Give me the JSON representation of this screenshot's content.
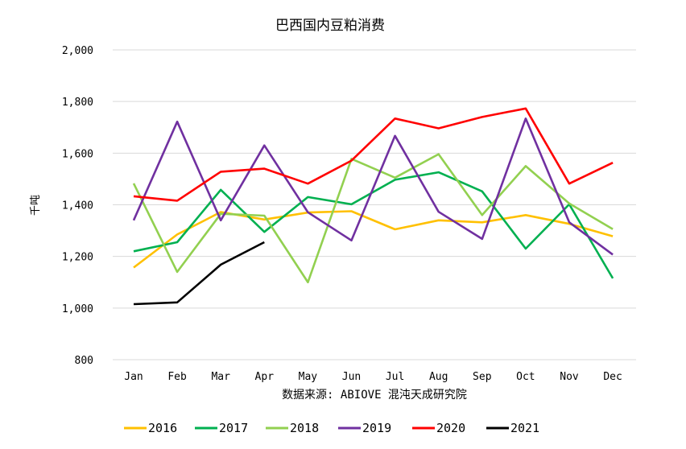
{
  "chart_data": {
    "type": "line",
    "title": "巴西国内豆粕消费",
    "xlabel": "",
    "ylabel": "千吨",
    "source": "数据来源: ABIOVE 混沌天成研究院",
    "ylim": [
      800,
      2000
    ],
    "y_ticks": [
      800,
      1000,
      1200,
      1400,
      1600,
      1800,
      2000
    ],
    "y_tick_labels": [
      "800",
      "1,000",
      "1,200",
      "1,400",
      "1,600",
      "1,800",
      "2,000"
    ],
    "grid": true,
    "legend_position": "bottom",
    "categories": [
      "Jan",
      "Feb",
      "Mar",
      "Apr",
      "May",
      "Jun",
      "Jul",
      "Aug",
      "Sep",
      "Oct",
      "Nov",
      "Dec"
    ],
    "series": [
      {
        "name": "2016",
        "color": "#FFC000",
        "values": [
          1157,
          1285,
          1372,
          1343,
          1370,
          1375,
          1305,
          1340,
          1332,
          1360,
          1326,
          1278
        ]
      },
      {
        "name": "2017",
        "color": "#00B050",
        "values": [
          1220,
          1255,
          1458,
          1295,
          1430,
          1402,
          1497,
          1526,
          1452,
          1230,
          1402,
          1115
        ]
      },
      {
        "name": "2018",
        "color": "#92D050",
        "values": [
          1483,
          1140,
          1365,
          1358,
          1100,
          1578,
          1505,
          1596,
          1360,
          1550,
          1405,
          1306
        ]
      },
      {
        "name": "2019",
        "color": "#7030A0",
        "values": [
          1340,
          1722,
          1340,
          1630,
          1371,
          1262,
          1667,
          1373,
          1268,
          1734,
          1332,
          1207
        ]
      },
      {
        "name": "2020",
        "color": "#FF0000",
        "values": [
          1433,
          1416,
          1528,
          1540,
          1482,
          1571,
          1734,
          1696,
          1740,
          1773,
          1482,
          1563
        ]
      },
      {
        "name": "2021",
        "color": "#000000",
        "values": [
          1015,
          1022,
          1168,
          1255,
          null,
          null,
          null,
          null,
          null,
          null,
          null,
          null
        ]
      }
    ]
  }
}
